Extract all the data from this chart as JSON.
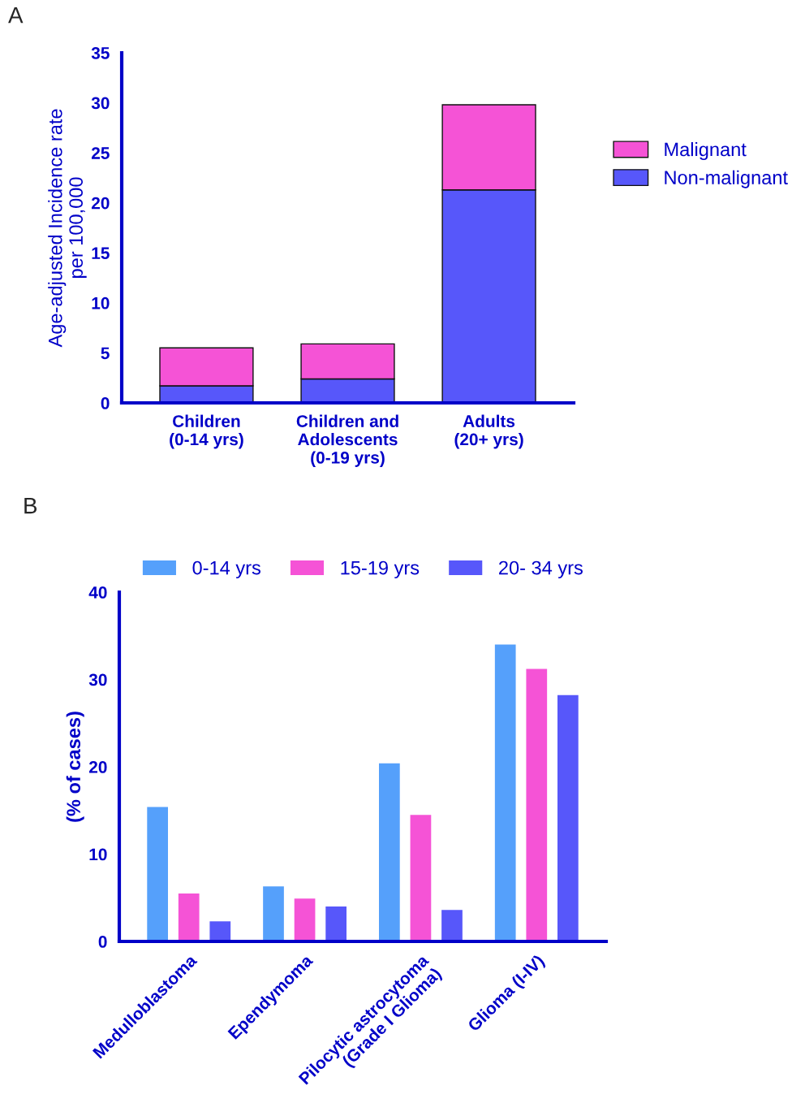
{
  "chart_data": [
    {
      "type": "bar",
      "stacked": true,
      "annotations": [
        "A"
      ],
      "ylabel": "Age-adjusted Incidence rate\nper 100,000",
      "categories": [
        "Children\n(0-14 yrs)",
        "Children and\nAdolescents\n(0-19 yrs)",
        "Adults\n(20+ yrs)"
      ],
      "series": [
        {
          "name": "Non-malignant",
          "color": "#5757fa",
          "values": [
            1.7,
            2.4,
            21.3
          ]
        },
        {
          "name": "Malignant",
          "color": "#f553d6",
          "values": [
            3.8,
            3.5,
            8.5
          ]
        }
      ],
      "ylim": [
        0,
        35
      ],
      "yticks": [
        0,
        5,
        10,
        15,
        20,
        25,
        30,
        35
      ],
      "legend": "right",
      "grid": false
    },
    {
      "type": "bar",
      "annotations": [
        "B"
      ],
      "ylabel": "(% of cases)",
      "categories": [
        "Medulloblastoma",
        "Ependymoma",
        "Pilocytic astrocytoma\n(Grade I Glioma)",
        "Glioma (I-IV)"
      ],
      "series": [
        {
          "name": "0-14 yrs",
          "color": "#55a0fb",
          "values": [
            15.4,
            6.3,
            20.4,
            34.0
          ]
        },
        {
          "name": "15-19 yrs",
          "color": "#f553d6",
          "values": [
            5.5,
            4.9,
            14.5,
            31.2
          ]
        },
        {
          "name": "20- 34 yrs",
          "color": "#5757fa",
          "values": [
            2.3,
            4.0,
            3.6,
            28.2
          ]
        }
      ],
      "ylim": [
        0,
        40
      ],
      "yticks": [
        0,
        10,
        20,
        30,
        40
      ],
      "legend": "top",
      "grid": false
    }
  ]
}
